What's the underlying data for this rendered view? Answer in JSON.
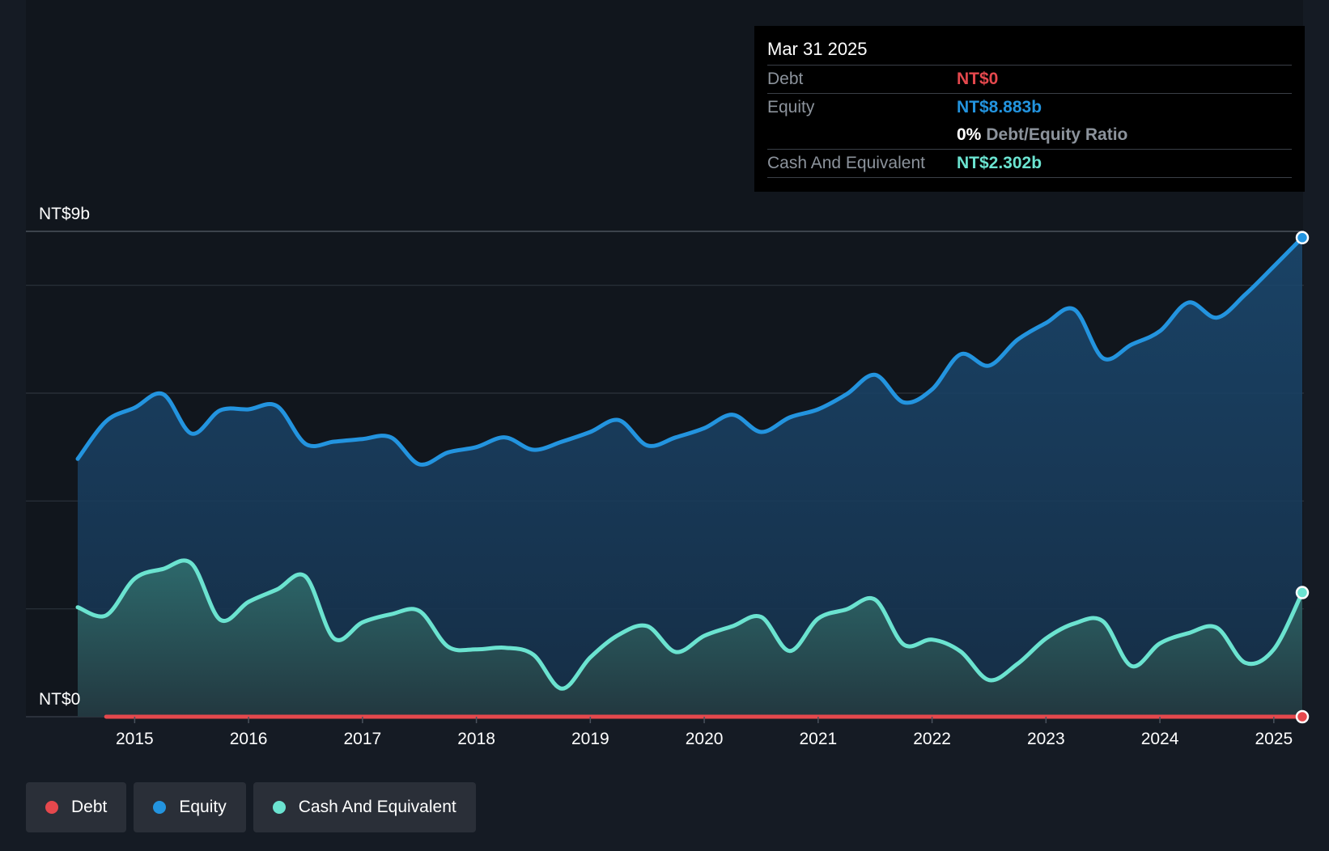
{
  "tooltip": {
    "date": "Mar 31 2025",
    "debt_label": "Debt",
    "debt_value": "NT$0",
    "equity_label": "Equity",
    "equity_value": "NT$8.883b",
    "ratio_value": "0%",
    "ratio_label": "Debt/Equity Ratio",
    "cash_label": "Cash And Equivalent",
    "cash_value": "NT$2.302b"
  },
  "legend": [
    {
      "label": "Debt",
      "color": "#e5484d"
    },
    {
      "label": "Equity",
      "color": "#2394df"
    },
    {
      "label": "Cash And Equivalent",
      "color": "#6be3d0"
    }
  ],
  "colors": {
    "debt": "#e5484d",
    "equity": "#2394df",
    "cash": "#6be3d0",
    "background": "#151b24",
    "grid": "#2c333d"
  },
  "chart_data": {
    "type": "area",
    "title": "",
    "xlabel": "",
    "ylabel": "",
    "y_axis_labels": [
      "NT$9b",
      "NT$0"
    ],
    "ylim": [
      0,
      9
    ],
    "xlim": [
      2014.5,
      2025.25
    ],
    "x_ticks": [
      "2015",
      "2016",
      "2017",
      "2018",
      "2019",
      "2020",
      "2021",
      "2022",
      "2023",
      "2024",
      "2025"
    ],
    "gridlines": [
      0,
      2,
      4,
      6,
      8,
      9
    ],
    "series": [
      {
        "name": "Equity",
        "points": [
          [
            2014.5,
            4.78
          ],
          [
            2014.75,
            5.48
          ],
          [
            2015.0,
            5.73
          ],
          [
            2015.25,
            5.98
          ],
          [
            2015.5,
            5.25
          ],
          [
            2015.75,
            5.68
          ],
          [
            2016.0,
            5.7
          ],
          [
            2016.25,
            5.76
          ],
          [
            2016.5,
            5.06
          ],
          [
            2016.75,
            5.1
          ],
          [
            2017.0,
            5.15
          ],
          [
            2017.25,
            5.18
          ],
          [
            2017.5,
            4.68
          ],
          [
            2017.75,
            4.9
          ],
          [
            2018.0,
            5.0
          ],
          [
            2018.25,
            5.18
          ],
          [
            2018.5,
            4.95
          ],
          [
            2018.75,
            5.1
          ],
          [
            2019.0,
            5.28
          ],
          [
            2019.25,
            5.5
          ],
          [
            2019.5,
            5.03
          ],
          [
            2019.75,
            5.18
          ],
          [
            2020.0,
            5.35
          ],
          [
            2020.25,
            5.6
          ],
          [
            2020.5,
            5.28
          ],
          [
            2020.75,
            5.55
          ],
          [
            2021.0,
            5.7
          ],
          [
            2021.25,
            5.98
          ],
          [
            2021.5,
            6.34
          ],
          [
            2021.75,
            5.83
          ],
          [
            2022.0,
            6.07
          ],
          [
            2022.25,
            6.72
          ],
          [
            2022.5,
            6.51
          ],
          [
            2022.75,
            6.99
          ],
          [
            2023.0,
            7.3
          ],
          [
            2023.25,
            7.55
          ],
          [
            2023.5,
            6.65
          ],
          [
            2023.75,
            6.9
          ],
          [
            2024.0,
            7.15
          ],
          [
            2024.25,
            7.68
          ],
          [
            2024.5,
            7.4
          ],
          [
            2024.75,
            7.83
          ],
          [
            2025.0,
            8.35
          ],
          [
            2025.25,
            8.883
          ]
        ]
      },
      {
        "name": "Cash And Equivalent",
        "points": [
          [
            2014.5,
            2.03
          ],
          [
            2014.75,
            1.88
          ],
          [
            2015.0,
            2.56
          ],
          [
            2015.25,
            2.74
          ],
          [
            2015.5,
            2.84
          ],
          [
            2015.75,
            1.8
          ],
          [
            2016.0,
            2.13
          ],
          [
            2016.25,
            2.36
          ],
          [
            2016.5,
            2.6
          ],
          [
            2016.75,
            1.45
          ],
          [
            2017.0,
            1.75
          ],
          [
            2017.25,
            1.9
          ],
          [
            2017.5,
            1.96
          ],
          [
            2017.75,
            1.3
          ],
          [
            2018.0,
            1.25
          ],
          [
            2018.25,
            1.28
          ],
          [
            2018.5,
            1.15
          ],
          [
            2018.75,
            0.52
          ],
          [
            2019.0,
            1.1
          ],
          [
            2019.25,
            1.52
          ],
          [
            2019.5,
            1.68
          ],
          [
            2019.75,
            1.2
          ],
          [
            2020.0,
            1.5
          ],
          [
            2020.25,
            1.68
          ],
          [
            2020.5,
            1.85
          ],
          [
            2020.75,
            1.22
          ],
          [
            2021.0,
            1.82
          ],
          [
            2021.25,
            1.99
          ],
          [
            2021.5,
            2.17
          ],
          [
            2021.75,
            1.34
          ],
          [
            2022.0,
            1.43
          ],
          [
            2022.25,
            1.21
          ],
          [
            2022.5,
            0.68
          ],
          [
            2022.75,
            0.98
          ],
          [
            2023.0,
            1.45
          ],
          [
            2023.25,
            1.73
          ],
          [
            2023.5,
            1.77
          ],
          [
            2023.75,
            0.94
          ],
          [
            2024.0,
            1.36
          ],
          [
            2024.25,
            1.55
          ],
          [
            2024.5,
            1.65
          ],
          [
            2024.75,
            1.0
          ],
          [
            2025.0,
            1.25
          ],
          [
            2025.25,
            2.302
          ]
        ]
      },
      {
        "name": "Debt",
        "points": [
          [
            2014.75,
            0
          ],
          [
            2025.25,
            0
          ]
        ]
      }
    ]
  }
}
